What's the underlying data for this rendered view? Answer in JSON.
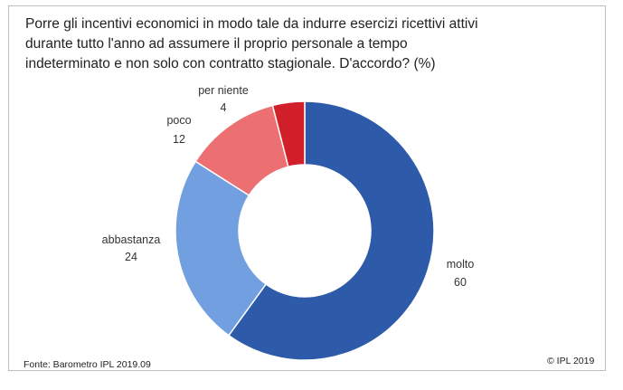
{
  "title_lines": [
    "Porre gli incentivi economici in modo tale da indurre esercizi ricettivi attivi",
    "durante tutto l'anno ad assumere il proprio personale a tempo",
    "indeterminato e non solo con contratto stagionale. D'accordo? (%)"
  ],
  "source": "Fonte: Barometro IPL 2019.09",
  "copyright": "© IPL  2019",
  "chart_data": {
    "type": "pie",
    "variant": "donut",
    "title": "Porre gli incentivi economici in modo tale da indurre esercizi ricettivi attivi durante tutto l'anno ad assumere il proprio personale a tempo indeterminato e non solo con contratto stagionale. D'accordo? (%)",
    "start": "top, clockwise",
    "legend": "none (direct labels)",
    "slices": [
      {
        "label": "molto",
        "value": 60,
        "color": "#2e5aaa"
      },
      {
        "label": "abbastanza",
        "value": 24,
        "color": "#729fe0"
      },
      {
        "label": "poco",
        "value": 12,
        "color": "#ec6f72"
      },
      {
        "label": "per niente",
        "value": 4,
        "color": "#d2202a"
      }
    ]
  }
}
